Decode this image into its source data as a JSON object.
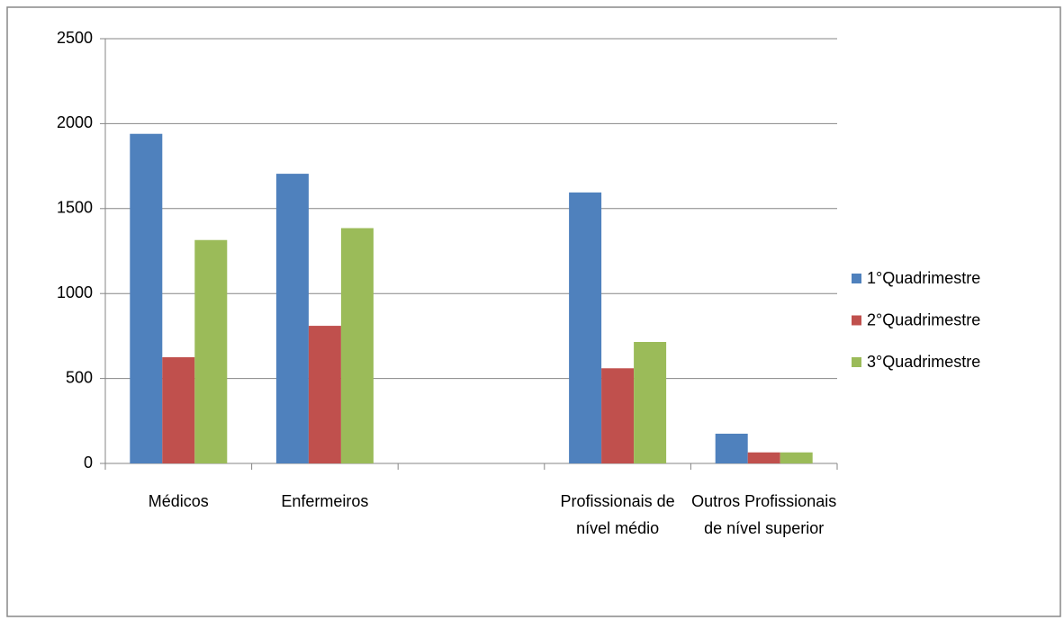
{
  "chart_data": {
    "type": "bar",
    "categories": [
      "Médicos",
      "Enfermeiros",
      null,
      "Profissionais de nível médio",
      "Outros Profissionais de nível superior"
    ],
    "series": [
      {
        "name": "1°Quadrimestre",
        "color": "#4f81bd",
        "values": [
          1940,
          1705,
          null,
          1595,
          175
        ]
      },
      {
        "name": "2°Quadrimestre",
        "color": "#c0504d",
        "values": [
          625,
          810,
          null,
          560,
          65
        ]
      },
      {
        "name": "3°Quadrimestre",
        "color": "#9bbb59",
        "values": [
          1315,
          1385,
          null,
          715,
          65
        ]
      }
    ],
    "ylim": [
      0,
      2500
    ],
    "yticks": [
      0,
      500,
      1000,
      1500,
      2000,
      2500
    ],
    "grid": true,
    "legend": "right"
  }
}
